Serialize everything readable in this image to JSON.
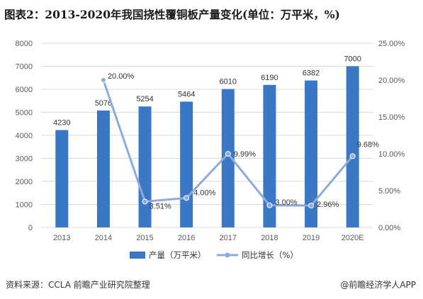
{
  "title": "图表2：2013-2020年我国挠性覆铜板产量变化(单位：万平米，%)",
  "source": "资料来源：CCLA 前瞻产业研究院整理",
  "brand": "@前瞻经济学人APP",
  "colors": {
    "bar": "#3a77c4",
    "line": "#8eaadb",
    "grid": "#d9d9d9"
  },
  "chart_data": {
    "type": "bar+line",
    "title": "图表2：2013-2020年我国挠性覆铜板产量变化(单位：万平米，%)",
    "categories": [
      "2013",
      "2014",
      "2015",
      "2016",
      "2017",
      "2018",
      "2019",
      "2020E"
    ],
    "series": [
      {
        "name": "产量（万平米）",
        "type": "bar",
        "axis": "left",
        "values": [
          4230,
          5076,
          5254,
          5464,
          6010,
          6190,
          6382,
          7000
        ],
        "labels": [
          "4230",
          "5076",
          "5254",
          "5464",
          "6010",
          "6190",
          "6382",
          "7000"
        ]
      },
      {
        "name": "同比增长（%）",
        "type": "line",
        "axis": "right",
        "values": [
          null,
          20.0,
          3.51,
          4.0,
          9.99,
          3.0,
          2.96,
          9.68
        ],
        "labels": [
          "",
          "20.00%",
          "3.51%",
          "4.00%",
          "9.99%",
          "3.00%",
          "2.96%",
          "9.68%"
        ]
      }
    ],
    "y_left": {
      "min": 0,
      "max": 8000,
      "ticks": [
        "0",
        "1000",
        "2000",
        "3000",
        "4000",
        "5000",
        "6000",
        "7000",
        "8000"
      ]
    },
    "y_right": {
      "min": 0,
      "max": 25,
      "ticks": [
        "0.00%",
        "5.00%",
        "10.00%",
        "15.00%",
        "20.00%",
        "25.00%"
      ]
    },
    "grid": true,
    "legend": "bottom"
  }
}
